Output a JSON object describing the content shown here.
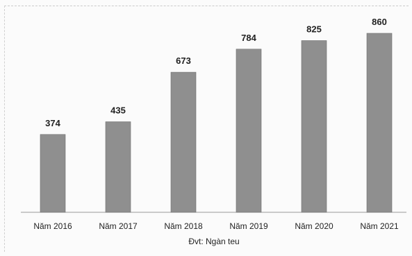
{
  "chart_data": {
    "type": "bar",
    "categories": [
      "Năm 2016",
      "Năm 2017",
      "Năm 2018",
      "Năm 2019",
      "Năm 2020",
      "Năm 2021"
    ],
    "values": [
      374,
      435,
      673,
      784,
      825,
      860
    ],
    "data_labels": [
      "374",
      "435",
      "673",
      "784",
      "825",
      "860"
    ],
    "title": "",
    "xlabel": "Đvt: Ngàn teu",
    "ylabel": "",
    "ylim": [
      0,
      900
    ],
    "grid": false,
    "legend": "none",
    "bar_color": "#8f8f8f"
  }
}
